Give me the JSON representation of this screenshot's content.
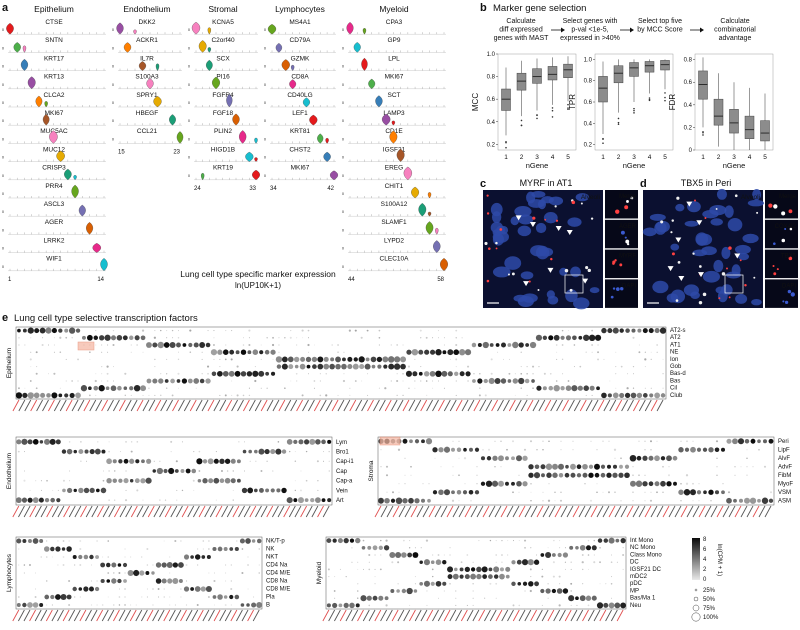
{
  "panel_a": {
    "letter": "a",
    "caption": "Lung cell type specific marker expression",
    "caption_unit": "ln(UP10K+1)",
    "columns": [
      {
        "title": "Epithelium",
        "genes": [
          "CTSE",
          "SNTN",
          "KRT17",
          "KRT13",
          "CLCA2",
          "MKI67",
          "MUC5AC",
          "MUC12",
          "CRISP3",
          "PRR4",
          "ASCL3",
          "AGER",
          "LRRK2",
          "WIF1"
        ],
        "range": [
          "1",
          "14"
        ]
      },
      {
        "title": "Endothelium",
        "genes": [
          "DKK2",
          "ACKR1",
          "IL7R",
          "S100A3",
          "SPRY1",
          "HBEGF",
          "CCL21"
        ],
        "range": [
          "15",
          "23"
        ]
      },
      {
        "title": "Stromal",
        "genes": [
          "KCNA5",
          "C2orf40",
          "SCX",
          "PI16",
          "FGFR4",
          "FGF18",
          "PLIN2",
          "HIGD1B",
          "KRT19"
        ],
        "range": [
          "24",
          "33"
        ]
      },
      {
        "title": "Lymphocytes",
        "genes": [
          "MS4A1",
          "CD79A",
          "GZMK",
          "CD8A",
          "CD40LG",
          "LEF1",
          "KRT81",
          "CHST2",
          "MKI67"
        ],
        "range": [
          "34",
          "42"
        ]
      },
      {
        "title": "Myeloid",
        "genes": [
          "CPA3",
          "GP9",
          "LPL",
          "MKI67",
          "SCT",
          "LAMP3",
          "CD1E",
          "IGSF21",
          "EREG",
          "CHIT1",
          "S100A12",
          "SLAMF1",
          "LYPD2",
          "CLEC10A"
        ],
        "range": [
          "44",
          "58"
        ]
      }
    ],
    "violin_colors": [
      "#e41a1c",
      "#4daf4a",
      "#377eb8",
      "#984ea3",
      "#ff7f00",
      "#a65628",
      "#f781bf",
      "#e6ab02",
      "#1b9e77",
      "#66a61e",
      "#7570b3",
      "#d95f02",
      "#e7298a",
      "#17becf"
    ]
  },
  "panel_b": {
    "letter": "b",
    "title": "Marker gene selection",
    "steps": [
      [
        "Calculate",
        "diff expressed",
        "genes with MAST"
      ],
      [
        "Select genes with",
        "p-val <1e-5,",
        "expressed in >40%"
      ],
      [
        "Select top five",
        "by MCC Score"
      ],
      [
        "Calculate",
        "combinatorial",
        "advantage"
      ]
    ],
    "xlabel": "nGene",
    "plots": [
      {
        "ylabel": "MCC",
        "ticks": [
          "0.2",
          "0.4",
          "0.6",
          "0.8",
          "1.0"
        ]
      },
      {
        "ylabel": "TPR",
        "ticks": [
          "0.2",
          "0.4",
          "0.6",
          "0.8",
          "1.0"
        ]
      },
      {
        "ylabel": "FDR",
        "ticks": [
          "0",
          "0.2",
          "0.4",
          "0.6",
          "0.8"
        ]
      }
    ],
    "xticks": [
      "1",
      "2",
      "3",
      "4",
      "5"
    ]
  },
  "chart_data": [
    {
      "type": "box",
      "ylabel": "MCC",
      "xlabel": "nGene",
      "x": [
        1,
        2,
        3,
        4,
        5
      ],
      "ylim": [
        0.15,
        1.0
      ],
      "series": [
        {
          "q1": [
            0.5,
            0.68,
            0.74,
            0.77,
            0.79
          ],
          "median": [
            0.6,
            0.76,
            0.8,
            0.82,
            0.86
          ],
          "q3": [
            0.69,
            0.83,
            0.87,
            0.89,
            0.91
          ],
          "min": [
            0.28,
            0.45,
            0.5,
            0.55,
            0.58
          ],
          "max": [
            0.88,
            0.94,
            0.96,
            0.97,
            0.98
          ]
        }
      ]
    },
    {
      "type": "box",
      "ylabel": "TPR",
      "xlabel": "nGene",
      "x": [
        1,
        2,
        3,
        4,
        5
      ],
      "ylim": [
        0.15,
        1.05
      ],
      "series": [
        {
          "q1": [
            0.6,
            0.78,
            0.84,
            0.88,
            0.9
          ],
          "median": [
            0.73,
            0.87,
            0.92,
            0.94,
            0.95
          ],
          "q3": [
            0.84,
            0.94,
            0.97,
            0.98,
            0.99
          ],
          "min": [
            0.3,
            0.5,
            0.6,
            0.68,
            0.72
          ],
          "max": [
            0.98,
            1.0,
            1.0,
            1.0,
            1.0
          ]
        }
      ]
    },
    {
      "type": "box",
      "ylabel": "FDR",
      "xlabel": "nGene",
      "x": [
        1,
        2,
        3,
        4,
        5
      ],
      "ylim": [
        0,
        0.85
      ],
      "series": [
        {
          "q1": [
            0.45,
            0.22,
            0.15,
            0.1,
            0.08
          ],
          "median": [
            0.58,
            0.3,
            0.24,
            0.18,
            0.15
          ],
          "q3": [
            0.7,
            0.45,
            0.36,
            0.3,
            0.26
          ],
          "min": [
            0.2,
            0.03,
            0.0,
            0.0,
            0.0
          ],
          "max": [
            0.82,
            0.68,
            0.6,
            0.55,
            0.5
          ]
        }
      ]
    }
  ],
  "panel_c": {
    "letter": "c",
    "title": "MYRF in AT1",
    "labels": [
      "Alveoli",
      "Merge",
      "AGER",
      "MYRF",
      "DAPI"
    ],
    "label_colors": [
      "#ffffff",
      "#ffffff",
      "#ff3030",
      "#ffffff",
      "#6a8cff"
    ]
  },
  "panel_d": {
    "letter": "d",
    "title": "TBX5 in Peri",
    "labels": [
      "Alveoli",
      "Merge",
      "COX4I2",
      "TBX5",
      "DAPI"
    ],
    "label_colors": [
      "#ffffff",
      "#ffffff",
      "#ffffff",
      "#ff3030",
      "#6a8cff"
    ]
  },
  "panel_e": {
    "letter": "e",
    "title": "Lung cell type selective transcription factors",
    "groups": [
      {
        "name": "Epithelium",
        "rows": [
          "AT2-s",
          "AT2",
          "AT1",
          "NE",
          "Ion",
          "Gob",
          "Bas-d",
          "Bas",
          "Cil",
          "Club"
        ]
      },
      {
        "name": "Endothelium",
        "rows": [
          "Lym",
          "Bro1",
          "Cap-i1",
          "Cap",
          "Cap-a",
          "Vein",
          "Art"
        ]
      },
      {
        "name": "Stroma",
        "rows": [
          "Peri",
          "LipF",
          "AlvF",
          "AdvF",
          "FibM",
          "MyoF",
          "VSM",
          "ASM"
        ]
      },
      {
        "name": "Lymphocytes",
        "rows": [
          "NK/T-p",
          "NK",
          "NKT",
          "CD4 Na",
          "CD4 M/E",
          "CD8 Na",
          "CD8 M/E",
          "Pla",
          "B"
        ]
      },
      {
        "name": "Myeloid",
        "rows": [
          "Int Mono",
          "NC Mono",
          "Class Mono",
          "DC",
          "IGSF21 DC",
          "mDC2",
          "pDC",
          "MP",
          "Bas/Ma 1",
          "Neu"
        ]
      }
    ],
    "legend": {
      "color_title": "ln(CPM + 1)",
      "color_ticks": [
        "8",
        "6",
        "4",
        "2",
        "0"
      ],
      "size_labels": [
        "25%",
        "50%",
        "75%",
        "100%"
      ]
    }
  }
}
